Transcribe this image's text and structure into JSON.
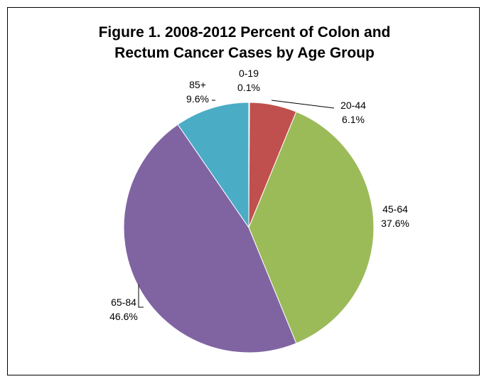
{
  "chart_data": {
    "type": "pie",
    "title_lines": [
      "Figure 1.  2008-2012 Percent of Colon and",
      "Rectum Cancer Cases by Age Group"
    ],
    "slices": [
      {
        "label": "0-19",
        "value": 0.1,
        "value_label": "0.1%",
        "color": "#4f81bd"
      },
      {
        "label": "20-44",
        "value": 6.1,
        "value_label": "6.1%",
        "color": "#c0504d"
      },
      {
        "label": "45-64",
        "value": 37.6,
        "value_label": "37.6%",
        "color": "#9bbb59"
      },
      {
        "label": "65-84",
        "value": 46.6,
        "value_label": "46.6%",
        "color": "#8064a2"
      },
      {
        "label": "85+",
        "value": 9.6,
        "value_label": "9.6%",
        "color": "#4bacc6"
      }
    ],
    "start_angle": "12 o'clock",
    "direction": "clockwise",
    "legend": "none",
    "data_labels": "outside with leader lines"
  }
}
